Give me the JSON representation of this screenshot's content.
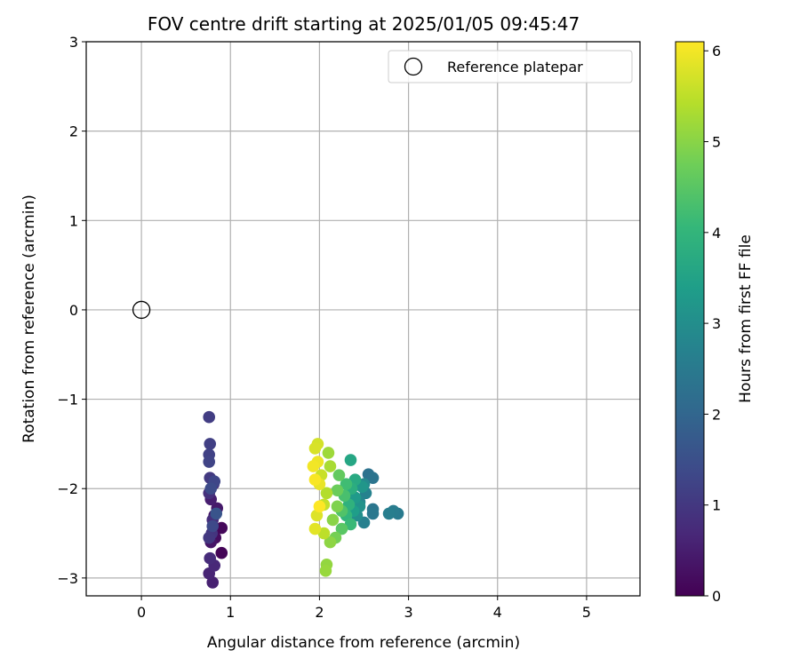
{
  "chart_data": {
    "type": "scatter",
    "title": "FOV centre drift starting at 2025/01/05 09:45:47",
    "xlabel": "Angular distance from reference (arcmin)",
    "ylabel": "Rotation from reference (arcmin)",
    "xlim": [
      -0.62,
      5.6
    ],
    "ylim": [
      -3.2,
      3.0
    ],
    "xticks": [
      0,
      1,
      2,
      3,
      4,
      5
    ],
    "xtick_labels": [
      "0",
      "1",
      "2",
      "3",
      "4",
      "5"
    ],
    "yticks": [
      -3,
      -2,
      -1,
      0,
      1,
      2,
      3
    ],
    "ytick_labels": [
      "−3",
      "−2",
      "−1",
      "0",
      "1",
      "2",
      "3"
    ],
    "grid": true,
    "legend": {
      "placement": "upper right",
      "entries": [
        "Reference platepar"
      ]
    },
    "reference": {
      "name": "Reference platepar",
      "x": 0,
      "y": 0,
      "marker": "hollow-circle"
    },
    "colorbar": {
      "label": "Hours from first FF file",
      "range": [
        0,
        6.1
      ],
      "ticks": [
        0,
        1,
        2,
        3,
        4,
        5,
        6
      ],
      "tick_labels": [
        "0",
        "1",
        "2",
        "3",
        "4",
        "5",
        "6"
      ],
      "colormap": "viridis",
      "colormap_stops": [
        "#440154",
        "#482878",
        "#3e4989",
        "#31688e",
        "#26828e",
        "#1f9e89",
        "#35b779",
        "#6ece58",
        "#b5de2b",
        "#fde725"
      ]
    },
    "points": [
      {
        "x": 0.9,
        "y": -2.72,
        "t": 0.05
      },
      {
        "x": 0.9,
        "y": -2.44,
        "t": 0.12
      },
      {
        "x": 0.83,
        "y": -2.55,
        "t": 0.2
      },
      {
        "x": 0.82,
        "y": -2.3,
        "t": 0.28
      },
      {
        "x": 0.78,
        "y": -2.6,
        "t": 0.35
      },
      {
        "x": 0.85,
        "y": -2.22,
        "t": 0.42
      },
      {
        "x": 0.78,
        "y": -2.12,
        "t": 0.5
      },
      {
        "x": 0.8,
        "y": -3.05,
        "t": 0.55
      },
      {
        "x": 0.76,
        "y": -2.95,
        "t": 0.62
      },
      {
        "x": 0.82,
        "y": -2.86,
        "t": 0.68
      },
      {
        "x": 0.77,
        "y": -2.78,
        "t": 0.75
      },
      {
        "x": 0.8,
        "y": -2.35,
        "t": 0.8
      },
      {
        "x": 0.76,
        "y": -2.05,
        "t": 0.85
      },
      {
        "x": 0.81,
        "y": -1.95,
        "t": 0.9
      },
      {
        "x": 0.79,
        "y": -2.5,
        "t": 0.95
      },
      {
        "x": 0.76,
        "y": -2.55,
        "t": 1.0
      },
      {
        "x": 0.77,
        "y": -1.88,
        "t": 1.05
      },
      {
        "x": 0.76,
        "y": -1.2,
        "t": 1.1
      },
      {
        "x": 0.77,
        "y": -1.5,
        "t": 1.15
      },
      {
        "x": 0.76,
        "y": -1.62,
        "t": 1.2
      },
      {
        "x": 0.76,
        "y": -1.7,
        "t": 1.25
      },
      {
        "x": 0.82,
        "y": -1.92,
        "t": 1.3
      },
      {
        "x": 0.8,
        "y": -2.42,
        "t": 1.35
      },
      {
        "x": 0.78,
        "y": -2.0,
        "t": 1.4
      },
      {
        "x": 0.84,
        "y": -2.28,
        "t": 1.6
      },
      {
        "x": 2.55,
        "y": -1.84,
        "t": 2.3
      },
      {
        "x": 2.6,
        "y": -1.88,
        "t": 2.35
      },
      {
        "x": 2.6,
        "y": -2.23,
        "t": 2.4
      },
      {
        "x": 2.6,
        "y": -2.28,
        "t": 2.45
      },
      {
        "x": 2.88,
        "y": -2.28,
        "t": 2.5
      },
      {
        "x": 2.83,
        "y": -2.25,
        "t": 2.55
      },
      {
        "x": 2.78,
        "y": -2.28,
        "t": 2.6
      },
      {
        "x": 2.5,
        "y": -2.38,
        "t": 2.65
      },
      {
        "x": 2.52,
        "y": -2.05,
        "t": 2.7
      },
      {
        "x": 2.45,
        "y": -2.15,
        "t": 2.8
      },
      {
        "x": 2.5,
        "y": -1.95,
        "t": 2.9
      },
      {
        "x": 2.42,
        "y": -2.3,
        "t": 3.0
      },
      {
        "x": 2.45,
        "y": -2.2,
        "t": 3.1
      },
      {
        "x": 2.48,
        "y": -1.98,
        "t": 3.2
      },
      {
        "x": 2.4,
        "y": -2.1,
        "t": 3.3
      },
      {
        "x": 2.38,
        "y": -2.25,
        "t": 3.4
      },
      {
        "x": 2.35,
        "y": -1.68,
        "t": 3.6
      },
      {
        "x": 2.4,
        "y": -1.9,
        "t": 3.7
      },
      {
        "x": 2.36,
        "y": -2.0,
        "t": 3.8
      },
      {
        "x": 2.33,
        "y": -2.18,
        "t": 3.9
      },
      {
        "x": 2.3,
        "y": -2.3,
        "t": 4.0
      },
      {
        "x": 2.35,
        "y": -2.4,
        "t": 4.1
      },
      {
        "x": 2.3,
        "y": -1.95,
        "t": 4.2
      },
      {
        "x": 2.28,
        "y": -2.08,
        "t": 4.3
      },
      {
        "x": 2.25,
        "y": -2.25,
        "t": 4.4
      },
      {
        "x": 2.25,
        "y": -2.45,
        "t": 4.5
      },
      {
        "x": 2.22,
        "y": -1.85,
        "t": 4.6
      },
      {
        "x": 2.2,
        "y": -2.02,
        "t": 4.7
      },
      {
        "x": 2.18,
        "y": -2.55,
        "t": 4.8
      },
      {
        "x": 2.2,
        "y": -2.2,
        "t": 4.9
      },
      {
        "x": 2.15,
        "y": -2.35,
        "t": 5.0
      },
      {
        "x": 2.12,
        "y": -2.6,
        "t": 5.05
      },
      {
        "x": 2.08,
        "y": -2.85,
        "t": 5.1
      },
      {
        "x": 2.07,
        "y": -2.92,
        "t": 5.15
      },
      {
        "x": 2.1,
        "y": -1.6,
        "t": 5.2
      },
      {
        "x": 2.12,
        "y": -1.75,
        "t": 5.3
      },
      {
        "x": 2.08,
        "y": -2.05,
        "t": 5.4
      },
      {
        "x": 2.05,
        "y": -2.5,
        "t": 5.5
      },
      {
        "x": 2.05,
        "y": -2.18,
        "t": 5.55
      },
      {
        "x": 2.02,
        "y": -1.85,
        "t": 5.6
      },
      {
        "x": 1.98,
        "y": -1.5,
        "t": 5.7
      },
      {
        "x": 1.95,
        "y": -1.55,
        "t": 5.75
      },
      {
        "x": 1.97,
        "y": -2.3,
        "t": 5.8
      },
      {
        "x": 1.95,
        "y": -2.45,
        "t": 5.85
      },
      {
        "x": 2.0,
        "y": -1.95,
        "t": 5.9
      },
      {
        "x": 1.98,
        "y": -1.7,
        "t": 5.95
      },
      {
        "x": 1.93,
        "y": -1.75,
        "t": 6.0
      },
      {
        "x": 1.95,
        "y": -1.9,
        "t": 6.05
      },
      {
        "x": 2.0,
        "y": -2.2,
        "t": 6.1
      }
    ]
  }
}
